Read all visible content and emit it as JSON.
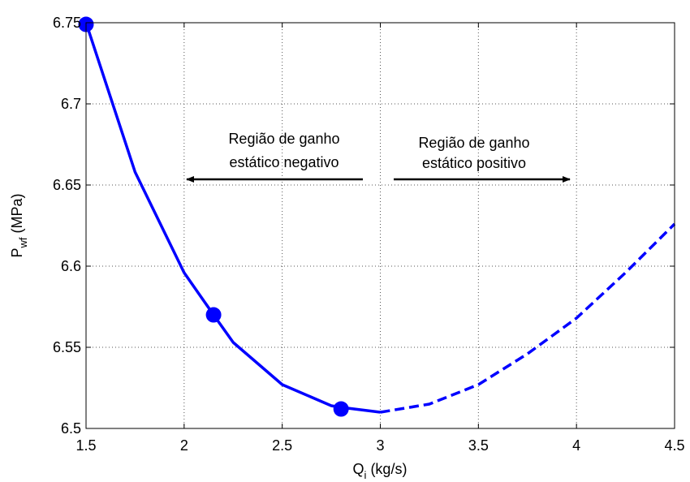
{
  "chart_data": {
    "type": "line",
    "xlabel": {
      "main": "Q",
      "sub": "i",
      "unit": " (kg/s)"
    },
    "ylabel": {
      "main": "P",
      "sub": "wf",
      "unit": " (MPa)"
    },
    "xlim": [
      1.5,
      4.5
    ],
    "ylim": [
      6.5,
      6.75
    ],
    "xticks": [
      "1.5",
      "2",
      "2.5",
      "3",
      "3.5",
      "4",
      "4.5"
    ],
    "yticks": [
      "6.5",
      "6.55",
      "6.6",
      "6.65",
      "6.7",
      "6.75"
    ],
    "grid": true,
    "line_color": "#0000ff",
    "series": [
      {
        "style": "solid",
        "x": [
          1.5,
          1.75,
          2.0,
          2.15,
          2.25,
          2.5,
          2.75,
          2.8,
          3.0
        ],
        "y": [
          6.75,
          6.658,
          6.596,
          6.57,
          6.553,
          6.527,
          6.514,
          6.513,
          6.51
        ]
      },
      {
        "style": "dashed",
        "x": [
          3.0,
          3.25,
          3.5,
          3.75,
          4.0,
          4.25,
          4.5
        ],
        "y": [
          6.51,
          6.515,
          6.527,
          6.546,
          6.568,
          6.596,
          6.626
        ]
      }
    ],
    "markers": {
      "x": [
        1.5,
        2.15,
        2.8
      ],
      "y": [
        6.749,
        6.57,
        6.512
      ]
    },
    "annotations": [
      {
        "lines": [
          "Região de ganho",
          "estático negativo"
        ],
        "arrow": "left"
      },
      {
        "lines": [
          "Região de ganho",
          "estático positivo"
        ],
        "arrow": "right"
      }
    ]
  }
}
